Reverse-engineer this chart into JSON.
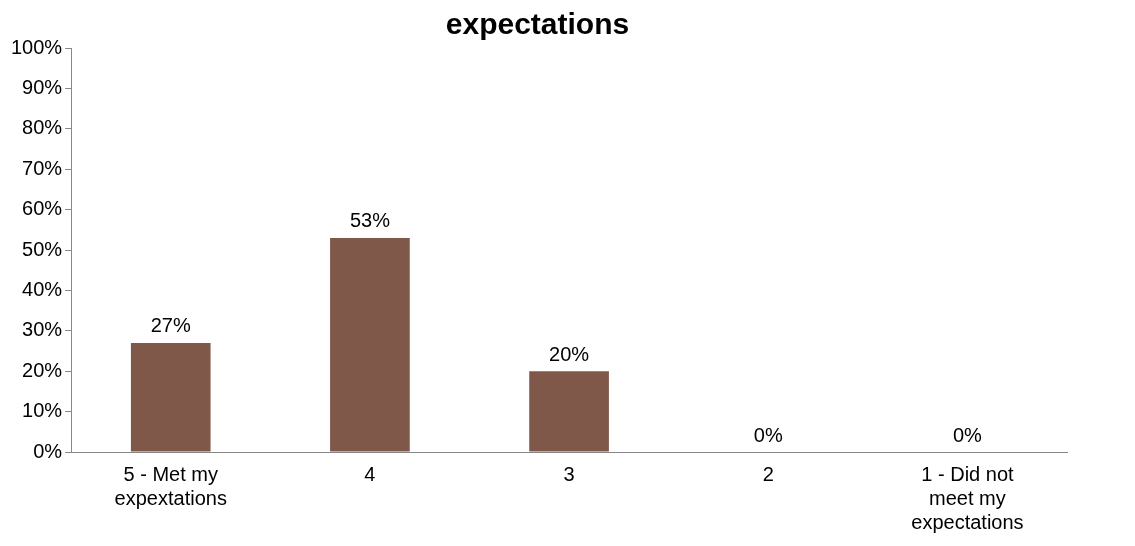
{
  "chart_data": {
    "type": "bar",
    "title": "expectations",
    "categories": [
      "5 - Met my expextations",
      "4",
      "3",
      "2",
      "1 - Did not meet my expectations"
    ],
    "values": [
      27,
      53,
      20,
      0,
      0
    ],
    "color": "#7f5849",
    "value_labels": [
      "27%",
      "53%",
      "20%",
      "0%",
      "0%"
    ],
    "ylim": [
      0,
      100
    ],
    "yticks": [
      {
        "value": 0,
        "label": "0%"
      },
      {
        "value": 10,
        "label": "10%"
      },
      {
        "value": 20,
        "label": "20%"
      },
      {
        "value": 30,
        "label": "30%"
      },
      {
        "value": 40,
        "label": "40%"
      },
      {
        "value": 50,
        "label": "50%"
      },
      {
        "value": 60,
        "label": "60%"
      },
      {
        "value": 70,
        "label": "70%"
      },
      {
        "value": 80,
        "label": "80%"
      },
      {
        "value": 90,
        "label": "90%"
      },
      {
        "value": 100,
        "label": "100%"
      }
    ],
    "grid": false,
    "legend": false
  }
}
